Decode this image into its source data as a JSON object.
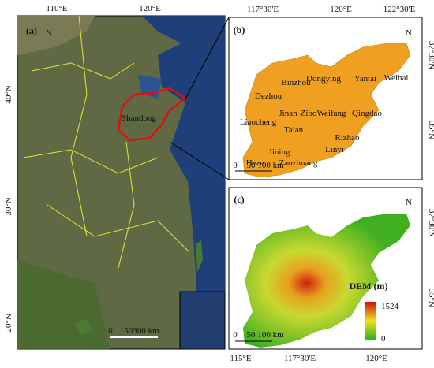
{
  "panel_a": {
    "label": "(a)",
    "north": "N",
    "region": "Shandong",
    "top_ticks": [
      "110°E",
      "120°E"
    ],
    "left_ticks": [
      "40°N",
      "30°N",
      "20°N"
    ],
    "scale": [
      "0",
      "150",
      "300 km"
    ]
  },
  "panel_b": {
    "label": "(b)",
    "north": "N",
    "top_ticks": [
      "117°30'E",
      "120°E",
      "122°30'E"
    ],
    "right_ticks": [
      "37°30'N",
      "35°N"
    ],
    "scale": [
      "0",
      "50",
      "100 km"
    ],
    "cities": [
      "Binzhou",
      "Dongying",
      "Yantai",
      "Weihai",
      "Dezhou",
      "Jinan",
      "Zibo",
      "Weifang",
      "Qingdao",
      "Liaocheng",
      "Taian",
      "Rizhao",
      "Linyi",
      "Jining",
      "Heze",
      "Zaozhuang"
    ]
  },
  "panel_c": {
    "label": "(c)",
    "north": "N",
    "bottom_ticks": [
      "115°E",
      "117°30'E",
      "120°E"
    ],
    "right_ticks": [
      "37°30'N",
      "35°N"
    ],
    "scale": [
      "0",
      "50",
      "100 km"
    ],
    "legend": {
      "title": "DEM (m)",
      "max": 1524,
      "min": 0
    }
  }
}
